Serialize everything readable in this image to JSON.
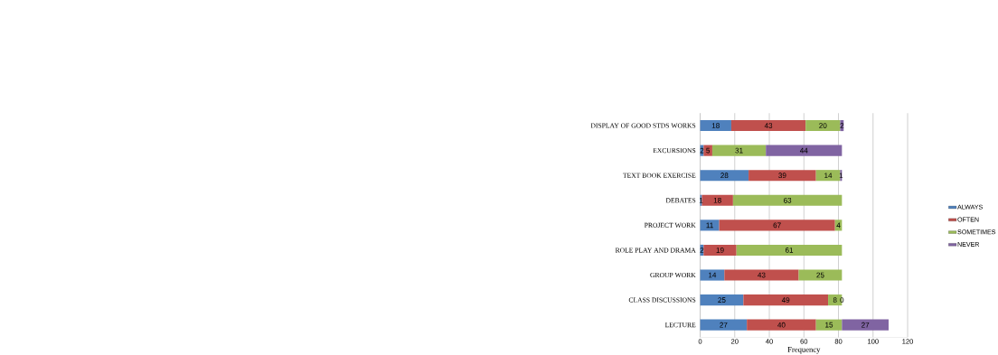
{
  "chart_data": {
    "type": "bar",
    "orientation": "horizontal",
    "stacked": true,
    "xlabel": "Frequency",
    "categories": [
      "DISPLAY OF GOOD STDS WORKS",
      "EXCURSIONS",
      "TEXT BOOK EXERCISE",
      "DEBATES",
      "PROJECT WORK",
      "ROLE PLAY AND DRAMA",
      "GROUP WORK",
      "CLASS DISCUSSIONS",
      "LECTURE"
    ],
    "series": [
      {
        "name": "ALWAYS",
        "color": "#4f81bd",
        "values": [
          18,
          2,
          28,
          1,
          11,
          2,
          14,
          25,
          27
        ]
      },
      {
        "name": "OFTEN",
        "color": "#c0504d",
        "values": [
          43,
          5,
          39,
          18,
          67,
          19,
          43,
          49,
          40
        ]
      },
      {
        "name": "SOMETIMES",
        "color": "#9bbb59",
        "values": [
          20,
          31,
          14,
          63,
          4,
          61,
          25,
          8,
          15
        ]
      },
      {
        "name": "NEVER",
        "color": "#8064a2",
        "values": [
          2,
          44,
          1,
          null,
          null,
          null,
          null,
          0,
          27
        ]
      }
    ],
    "xlim": [
      0,
      120
    ],
    "xticks": [
      0,
      20,
      40,
      60,
      80,
      100,
      120
    ],
    "grid": "x",
    "legend": "right",
    "data_labels": true
  }
}
